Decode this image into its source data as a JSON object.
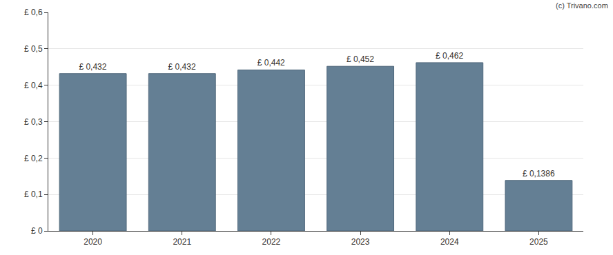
{
  "chart_data": {
    "type": "bar",
    "annotations": [
      "(c) Trivano.com"
    ],
    "categories": [
      "2020",
      "2021",
      "2022",
      "2023",
      "2024",
      "2025"
    ],
    "values": [
      0.432,
      0.432,
      0.442,
      0.452,
      0.462,
      0.1386
    ],
    "value_labels": [
      "£ 0,432",
      "£ 0,432",
      "£ 0,442",
      "£ 0,452",
      "£ 0,462",
      "£ 0,1386"
    ],
    "data_labels": true,
    "color": "#647f94",
    "ylim": [
      0,
      0.6
    ],
    "yticks": [
      {
        "value": 0,
        "label": "£ 0"
      },
      {
        "value": 0.1,
        "label": "£ 0,1"
      },
      {
        "value": 0.2,
        "label": "£ 0,2"
      },
      {
        "value": 0.3,
        "label": "£ 0,3"
      },
      {
        "value": 0.4,
        "label": "£ 0,4"
      },
      {
        "value": 0.5,
        "label": "£ 0,5"
      },
      {
        "value": 0.6,
        "label": "£ 0,6"
      }
    ],
    "grid": true
  }
}
